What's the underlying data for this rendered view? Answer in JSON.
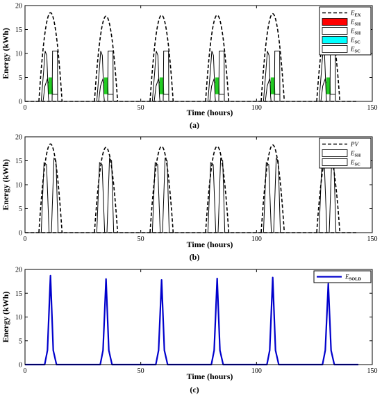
{
  "chart_data": [
    {
      "panel_label": "(a)",
      "type": "line",
      "xlabel": "Time (hours)",
      "ylabel": "Energy (kWh)",
      "xlim": [
        0,
        150
      ],
      "ylim": [
        0,
        20
      ],
      "xticks": [
        "0",
        "50",
        "100",
        "150"
      ],
      "yticks": [
        "0",
        "5",
        "10",
        "15",
        "20"
      ],
      "legend_position": "top-right",
      "legend": [
        {
          "main": "E",
          "sub": "EX",
          "style": "dashed",
          "color": "#000000"
        },
        {
          "main": "E",
          "sub": "SH",
          "style": "fill",
          "color": "#ff0000"
        },
        {
          "main": "E",
          "sub": "SH",
          "style": "outline",
          "color": "#ffffff"
        },
        {
          "main": "E",
          "sub": "SC",
          "style": "fill",
          "color": "#00ffff"
        },
        {
          "main": "E",
          "sub": "SC",
          "style": "outline",
          "color": "#ffffff"
        }
      ],
      "day_centers": [
        11,
        35,
        59,
        83,
        107,
        131
      ],
      "series": [
        {
          "name": "E_EX",
          "style": "dashed",
          "peaks": [
            18.5,
            17.8,
            18.0,
            18.0,
            18.3,
            17.0
          ]
        },
        {
          "name": "E_SH",
          "style": "outline",
          "peak": 10.5
        },
        {
          "name": "E_SC",
          "style": "green-fill",
          "peak": 5.0
        }
      ]
    },
    {
      "panel_label": "(b)",
      "type": "line",
      "xlabel": "Time (hours)",
      "ylabel": "Energy (kWh)",
      "xlim": [
        0,
        150
      ],
      "ylim": [
        0,
        20
      ],
      "xticks": [
        "0",
        "50",
        "100",
        "150"
      ],
      "yticks": [
        "0",
        "5",
        "10",
        "15",
        "20"
      ],
      "legend_position": "top-right",
      "legend": [
        {
          "main": "PV",
          "sub": "",
          "style": "dashed",
          "color": "#000000"
        },
        {
          "main": "E",
          "sub": "SH",
          "style": "outline",
          "color": "#ffffff"
        },
        {
          "main": "E",
          "sub": "SC",
          "style": "outline",
          "color": "#ffffff"
        }
      ],
      "day_centers": [
        11,
        35,
        59,
        83,
        107,
        131
      ],
      "series": [
        {
          "name": "PV",
          "style": "dashed",
          "peaks": [
            18.5,
            17.8,
            18.0,
            18.0,
            18.3,
            17.0
          ]
        },
        {
          "name": "E_SH",
          "style": "outline",
          "peak": 15.5
        }
      ]
    },
    {
      "panel_label": "(c)",
      "type": "line",
      "xlabel": "Time (hours)",
      "ylabel": "Energy (kWh)",
      "xlim": [
        0,
        150
      ],
      "ylim": [
        0,
        20
      ],
      "xticks": [
        "0",
        "50",
        "100",
        "150"
      ],
      "yticks": [
        "0",
        "5",
        "10",
        "15",
        "20"
      ],
      "legend_position": "top-right",
      "legend": [
        {
          "main": "E",
          "sub": "SOLD",
          "style": "line",
          "color": "#0000cc"
        }
      ],
      "day_centers": [
        11,
        35,
        59,
        83,
        107,
        131
      ],
      "series": [
        {
          "name": "E_SOLD",
          "style": "line",
          "color": "#0000cc",
          "peaks": [
            18.7,
            18.0,
            17.8,
            18.1,
            18.3,
            17.0
          ]
        }
      ]
    }
  ]
}
